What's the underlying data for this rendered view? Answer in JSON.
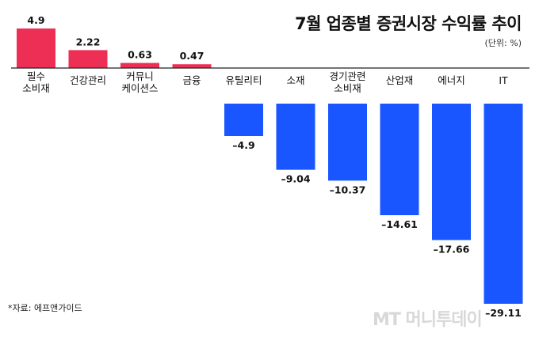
{
  "chart_data": {
    "type": "bar",
    "title": "7월 업종별 증권시장 수익률 추이",
    "unit": "(단위: %)",
    "categories": [
      [
        "필수",
        "소비재"
      ],
      [
        "건강관리"
      ],
      [
        "커뮤니",
        "케이션스"
      ],
      [
        "금융"
      ],
      [
        "유틸리티"
      ],
      [
        "소재"
      ],
      [
        "경기관련",
        "소비재"
      ],
      [
        "산업재"
      ],
      [
        "에너지"
      ],
      [
        "IT"
      ]
    ],
    "values": [
      4.9,
      2.22,
      0.63,
      0.47,
      -4.9,
      -9.04,
      -10.37,
      -14.61,
      -17.66,
      -29.11
    ],
    "value_labels": [
      "4.9",
      "2.22",
      "0.63",
      "0.47",
      "–4.9",
      "–9.04",
      "–10.37",
      "–14.61",
      "–17.66",
      "–29.11"
    ],
    "colors": {
      "positive": "#ee2f55",
      "negative": "#1a56ff",
      "axis": "#222222"
    },
    "source": "*자료: 에프앤가이드"
  },
  "watermark": "MT 머니투데이"
}
